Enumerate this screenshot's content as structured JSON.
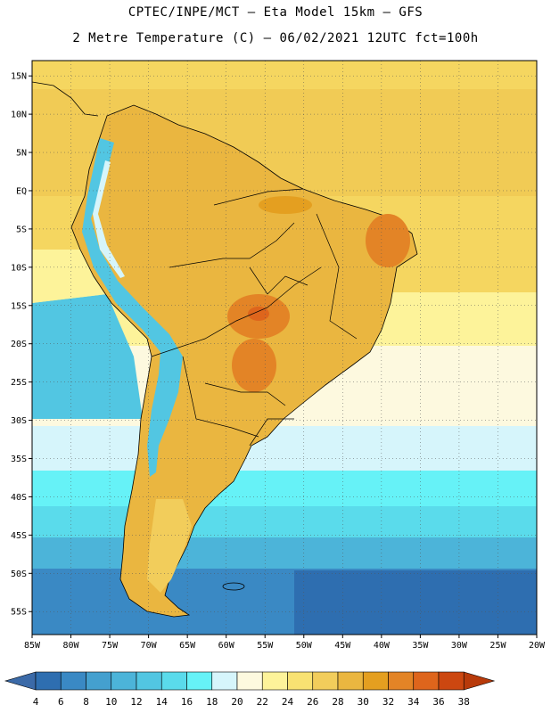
{
  "header": {
    "line1": "CPTEC/INPE/MCT –  Eta Model 15km – GFS",
    "line2": "2 Metre Temperature (C) – 06/02/2021 12UTC fct=100h"
  },
  "map": {
    "lon_range": [
      -85,
      -20
    ],
    "lat_range": [
      -58,
      17
    ],
    "lat_ticks": [
      {
        "v": 15,
        "label": "15N"
      },
      {
        "v": 10,
        "label": "10N"
      },
      {
        "v": 5,
        "label": "5N"
      },
      {
        "v": 0,
        "label": "EQ"
      },
      {
        "v": -5,
        "label": "5S"
      },
      {
        "v": -10,
        "label": "10S"
      },
      {
        "v": -15,
        "label": "15S"
      },
      {
        "v": -20,
        "label": "20S"
      },
      {
        "v": -25,
        "label": "25S"
      },
      {
        "v": -30,
        "label": "30S"
      },
      {
        "v": -35,
        "label": "35S"
      },
      {
        "v": -40,
        "label": "40S"
      },
      {
        "v": -45,
        "label": "45S"
      },
      {
        "v": -50,
        "label": "50S"
      },
      {
        "v": -55,
        "label": "55S"
      }
    ],
    "lon_ticks": [
      {
        "v": -85,
        "label": "85W"
      },
      {
        "v": -80,
        "label": "80W"
      },
      {
        "v": -75,
        "label": "75W"
      },
      {
        "v": -70,
        "label": "70W"
      },
      {
        "v": -65,
        "label": "65W"
      },
      {
        "v": -60,
        "label": "60W"
      },
      {
        "v": -55,
        "label": "55W"
      },
      {
        "v": -50,
        "label": "50W"
      },
      {
        "v": -45,
        "label": "45W"
      },
      {
        "v": -40,
        "label": "40W"
      },
      {
        "v": -35,
        "label": "35W"
      },
      {
        "v": -30,
        "label": "30W"
      },
      {
        "v": -25,
        "label": "25W"
      },
      {
        "v": -20,
        "label": "20W"
      }
    ]
  },
  "colorbar": {
    "values": [
      4,
      6,
      8,
      10,
      12,
      14,
      16,
      18,
      20,
      22,
      24,
      26,
      28,
      30,
      32,
      34,
      36,
      38
    ],
    "colors": [
      "#2e6eb0",
      "#3a89c4",
      "#44a0cf",
      "#4cb4d9",
      "#52c6e2",
      "#5adbeb",
      "#66f2f7",
      "#d6f5fb",
      "#fdf9df",
      "#fdf39a",
      "#f8e272",
      "#f2cd5b",
      "#eab640",
      "#e49f20",
      "#e38426",
      "#de651c",
      "#cc4710"
    ],
    "low_color": "#3b6aa8",
    "high_color": "#b83a0a"
  }
}
